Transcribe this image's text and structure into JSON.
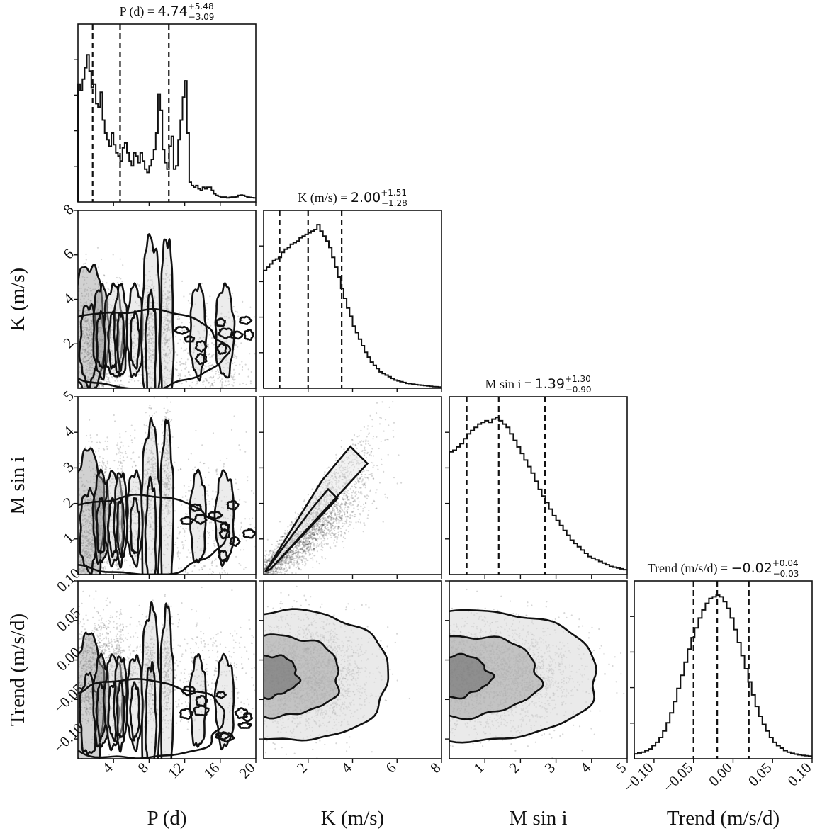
{
  "chart_data": {
    "type": "corner",
    "parameters": [
      {
        "key": "P",
        "label": "P (d)",
        "range": [
          0,
          20
        ],
        "ticks": [
          4,
          8,
          12,
          16,
          20
        ],
        "tick_labels": [
          "4",
          "8",
          "12",
          "16",
          "20"
        ],
        "quantiles": [
          1.65,
          4.74,
          10.22
        ],
        "title_name": "P (d) = ",
        "title_value": "4.74",
        "title_plus": "+5.48",
        "title_minus": "−3.09",
        "hist": [
          0.72,
          0.68,
          0.75,
          0.82,
          0.9,
          0.8,
          0.7,
          0.72,
          0.6,
          0.58,
          0.67,
          0.5,
          0.42,
          0.38,
          0.34,
          0.42,
          0.35,
          0.3,
          0.28,
          0.25,
          0.33,
          0.36,
          0.3,
          0.25,
          0.22,
          0.3,
          0.28,
          0.24,
          0.3,
          0.25,
          0.2,
          0.18,
          0.22,
          0.26,
          0.32,
          0.42,
          0.66,
          0.56,
          0.32,
          0.24,
          0.2,
          0.34,
          0.4,
          0.2,
          0.22,
          0.38,
          0.5,
          0.64,
          0.74,
          0.42,
          0.12,
          0.1,
          0.09,
          0.1,
          0.08,
          0.07,
          0.09,
          0.08,
          0.09,
          0.09,
          0.07,
          0.05,
          0.04,
          0.035,
          0.03,
          0.03,
          0.03,
          0.025,
          0.028,
          0.03,
          0.03,
          0.032,
          0.04,
          0.042,
          0.04,
          0.035,
          0.03,
          0.028,
          0.026,
          0.025
        ]
      },
      {
        "key": "K",
        "label": "K (m/s)",
        "range": [
          0,
          8
        ],
        "ticks": [
          2,
          4,
          6,
          8
        ],
        "tick_labels": [
          "2",
          "4",
          "6",
          "8"
        ],
        "quantiles": [
          0.72,
          2.0,
          3.51
        ],
        "title_name": "K (m/s) = ",
        "title_value": "2.00",
        "title_plus": "+1.51",
        "title_minus": "−1.28",
        "hist": [
          0.72,
          0.74,
          0.76,
          0.78,
          0.79,
          0.8,
          0.83,
          0.85,
          0.86,
          0.88,
          0.89,
          0.9,
          0.92,
          0.93,
          0.94,
          0.95,
          0.96,
          0.97,
          1.0,
          0.96,
          0.93,
          0.9,
          0.86,
          0.8,
          0.74,
          0.68,
          0.61,
          0.55,
          0.49,
          0.44,
          0.38,
          0.34,
          0.3,
          0.26,
          0.22,
          0.19,
          0.16,
          0.14,
          0.12,
          0.1,
          0.09,
          0.08,
          0.07,
          0.06,
          0.05,
          0.045,
          0.04,
          0.035,
          0.03,
          0.028,
          0.025,
          0.022,
          0.02,
          0.018,
          0.016,
          0.014,
          0.012,
          0.01,
          0.009,
          0.008
        ]
      },
      {
        "key": "Msini",
        "label": "M sin i",
        "range": [
          0,
          5
        ],
        "ticks": [
          1,
          2,
          3,
          4,
          5
        ],
        "tick_labels": [
          "1",
          "2",
          "3",
          "4",
          "5"
        ],
        "quantiles": [
          0.49,
          1.39,
          2.69
        ],
        "title_name": "M sin i = ",
        "title_value": "1.39",
        "title_plus": "+1.30",
        "title_minus": "−0.90",
        "hist": [
          0.75,
          0.76,
          0.78,
          0.8,
          0.83,
          0.86,
          0.88,
          0.9,
          0.92,
          0.93,
          0.94,
          0.93,
          0.95,
          0.96,
          0.94,
          0.92,
          0.9,
          0.86,
          0.82,
          0.78,
          0.74,
          0.7,
          0.66,
          0.62,
          0.57,
          0.52,
          0.48,
          0.44,
          0.4,
          0.36,
          0.33,
          0.3,
          0.27,
          0.24,
          0.21,
          0.19,
          0.17,
          0.15,
          0.13,
          0.11,
          0.1,
          0.09,
          0.08,
          0.07,
          0.06,
          0.05,
          0.045,
          0.04,
          0.035,
          0.03
        ]
      },
      {
        "key": "Trend",
        "label": "Trend (m/s/d)",
        "range": [
          -0.125,
          0.1
        ],
        "ticks": [
          -0.1,
          -0.05,
          0.0,
          0.05,
          0.1
        ],
        "tick_labels": [
          "−0.10",
          "−0.05",
          "0.00",
          "0.05",
          "0.10"
        ],
        "quantiles": [
          -0.05,
          -0.02,
          0.02
        ],
        "title_name": "Trend (m/s/d) = ",
        "title_value": "−0.02",
        "title_plus": "+0.04",
        "title_minus": "−0.03",
        "hist": [
          0.03,
          0.035,
          0.04,
          0.05,
          0.06,
          0.08,
          0.1,
          0.13,
          0.17,
          0.22,
          0.28,
          0.35,
          0.43,
          0.51,
          0.59,
          0.67,
          0.74,
          0.8,
          0.86,
          0.91,
          0.95,
          0.98,
          0.99,
          1.0,
          0.99,
          0.96,
          0.92,
          0.86,
          0.79,
          0.71,
          0.63,
          0.55,
          0.47,
          0.39,
          0.32,
          0.26,
          0.21,
          0.17,
          0.13,
          0.1,
          0.08,
          0.065,
          0.05,
          0.04,
          0.033,
          0.028,
          0.024,
          0.021,
          0.018,
          0.016
        ]
      }
    ],
    "pairs": [
      {
        "x": "P",
        "y": "K",
        "kind": "multimodal_period"
      },
      {
        "x": "P",
        "y": "Msini",
        "kind": "multimodal_period"
      },
      {
        "x": "K",
        "y": "Msini",
        "kind": "correlated_wedge"
      },
      {
        "x": "P",
        "y": "Trend",
        "kind": "multimodal_period"
      },
      {
        "x": "K",
        "y": "Trend",
        "kind": "gaussian_blob"
      },
      {
        "x": "Msini",
        "y": "Trend",
        "kind": "gaussian_blob"
      }
    ],
    "y_axis_labels": {
      "K": "K (m/s)",
      "Msini": "M sin i",
      "Trend": "Trend (m/s/d)"
    }
  }
}
